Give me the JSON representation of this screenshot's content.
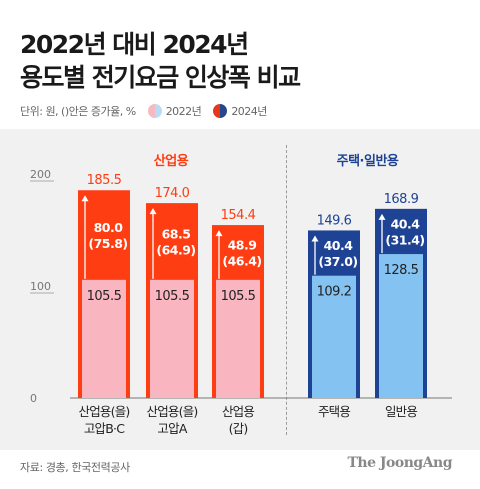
{
  "title_line1": "2022년 대비 2024년",
  "title_line2": "용도별 전기요금 인상폭 비교",
  "legend": {
    "unit": "단위: 원, ()안은 증가율, %",
    "label_2022": "2022년",
    "label_2024": "2024년"
  },
  "group_labels": {
    "industrial": "산업용",
    "residential_general": "주택·일반용"
  },
  "source": "자료: 경총, 한국전력공사",
  "brand": "The JoongAng",
  "colors": {
    "industrial_2024": "#ff3d12",
    "industrial_2022": "#f9b6c0",
    "residential_2024": "#1e4395",
    "residential_2022": "#84c2f1",
    "industrial_label": "#ff3d12",
    "residential_label": "#1e4395"
  },
  "chart_data": {
    "type": "bar",
    "title": "2022년 대비 2024년 용도별 전기요금 인상폭 비교",
    "ylim": [
      0,
      200
    ],
    "yticks": [
      "0",
      "100",
      "200"
    ],
    "grid": false,
    "categories": [
      {
        "line1": "산업용(을)",
        "line2": "고압B·C",
        "group": "industrial"
      },
      {
        "line1": "산업용(을)",
        "line2": "고압A",
        "group": "industrial"
      },
      {
        "line1": "산업용",
        "line2": "(갑)",
        "group": "industrial"
      },
      {
        "line1": "주택용",
        "line2": "",
        "group": "residential"
      },
      {
        "line1": "일반용",
        "line2": "",
        "group": "residential"
      }
    ],
    "series": [
      {
        "name": "2022년",
        "values": [
          105.5,
          105.5,
          105.5,
          109.2,
          128.5
        ],
        "labels": [
          "105.5",
          "105.5",
          "105.5",
          "109.2",
          "128.5"
        ]
      },
      {
        "name": "2024년",
        "values": [
          185.5,
          174.0,
          154.4,
          149.6,
          168.9
        ],
        "labels": [
          "185.5",
          "174.0",
          "154.4",
          "149.6",
          "168.9"
        ]
      }
    ],
    "increase": [
      "80.0",
      "68.5",
      "48.9",
      "40.4",
      "40.4"
    ],
    "increase_rate": [
      "(75.8)",
      "(64.9)",
      "(46.4)",
      "(37.0)",
      "(31.4)"
    ]
  }
}
